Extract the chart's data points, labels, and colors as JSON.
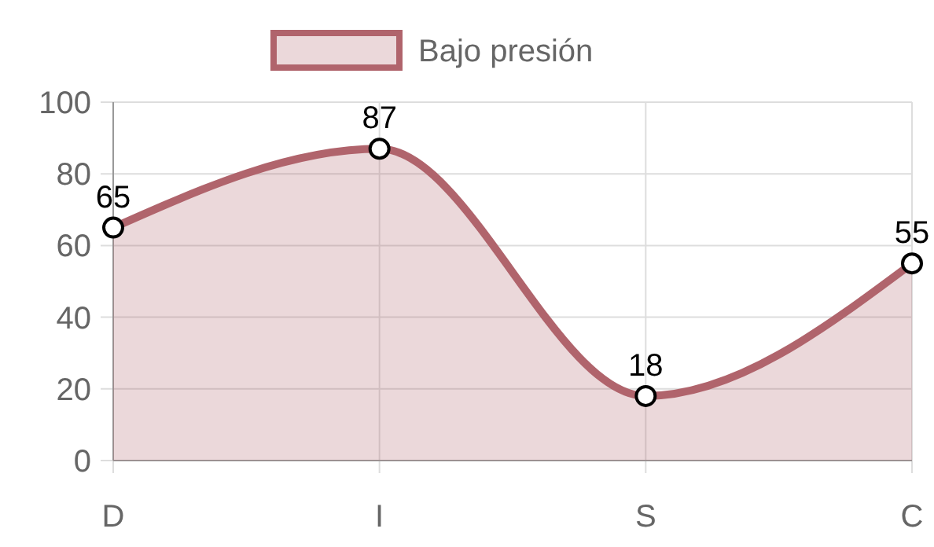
{
  "chart_data": {
    "type": "area",
    "categories": [
      "D",
      "I",
      "S",
      "C"
    ],
    "series": [
      {
        "name": "Bajo presión",
        "color": "#b0646c",
        "values": [
          65,
          87,
          18,
          55
        ]
      }
    ],
    "ylim": [
      0,
      100
    ],
    "yticks": [
      0,
      20,
      40,
      60,
      80,
      100
    ],
    "grid": true,
    "legend": "top",
    "marker": "circle",
    "data_labels": true,
    "line_style": "solid"
  }
}
